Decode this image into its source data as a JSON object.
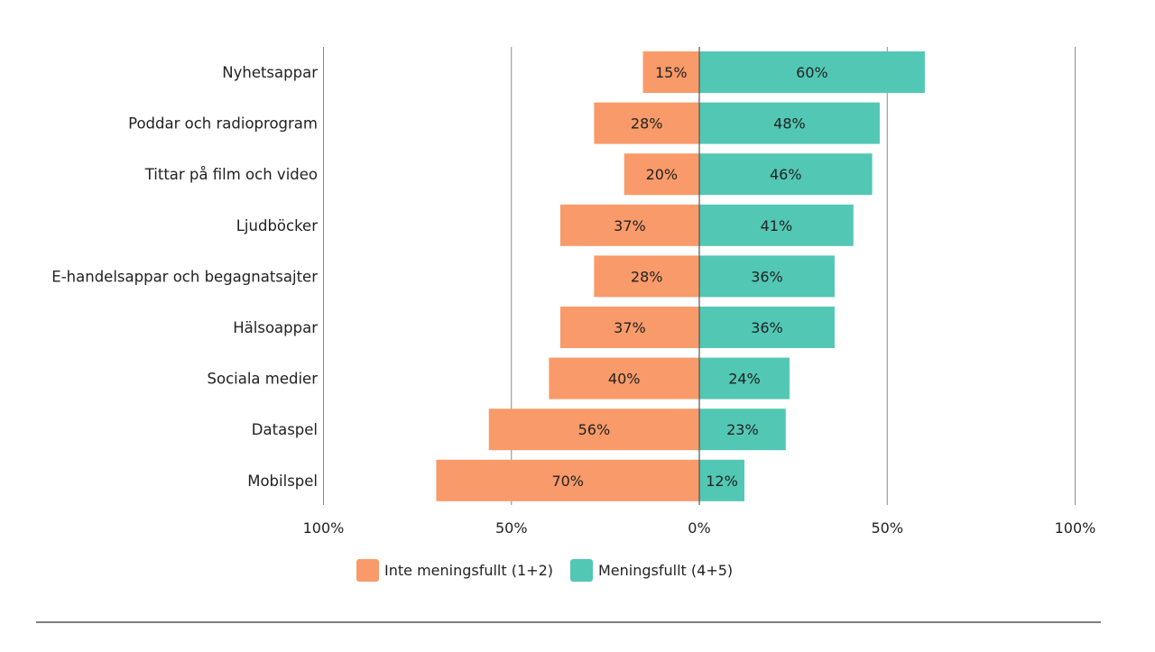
{
  "chart_data": {
    "type": "bar",
    "orientation": "horizontal-diverging",
    "categories": [
      "Nyhetsappar",
      "Poddar och radioprogram",
      "Tittar på film och video",
      "Ljudböcker",
      "E-handelsappar och begagnatsajter",
      "Hälsoappar",
      "Sociala medier",
      "Dataspel",
      "Mobilspel"
    ],
    "series": [
      {
        "name": "Inte meningsfullt (1+2)",
        "color": "#f89a69",
        "direction": "left",
        "values": [
          15,
          28,
          20,
          37,
          28,
          37,
          40,
          56,
          70
        ],
        "labels": [
          "15%",
          "28%",
          "20%",
          "37%",
          "28%",
          "37%",
          "40%",
          "56%",
          "70%"
        ]
      },
      {
        "name": "Meningsfullt (4+5)",
        "color": "#52c7b4",
        "direction": "right",
        "values": [
          60,
          48,
          46,
          41,
          36,
          36,
          24,
          23,
          12
        ],
        "labels": [
          "60%",
          "48%",
          "46%",
          "41%",
          "36%",
          "36%",
          "24%",
          "23%",
          "12%"
        ]
      }
    ],
    "xlim": [
      -100,
      100
    ],
    "ticks": [
      -100,
      -50,
      0,
      50,
      100
    ],
    "tick_labels": [
      "100%",
      "50%",
      "0%",
      "50%",
      "100%"
    ],
    "grid": true,
    "legend_position": "bottom-center",
    "title": "",
    "xlabel": "",
    "ylabel": ""
  }
}
